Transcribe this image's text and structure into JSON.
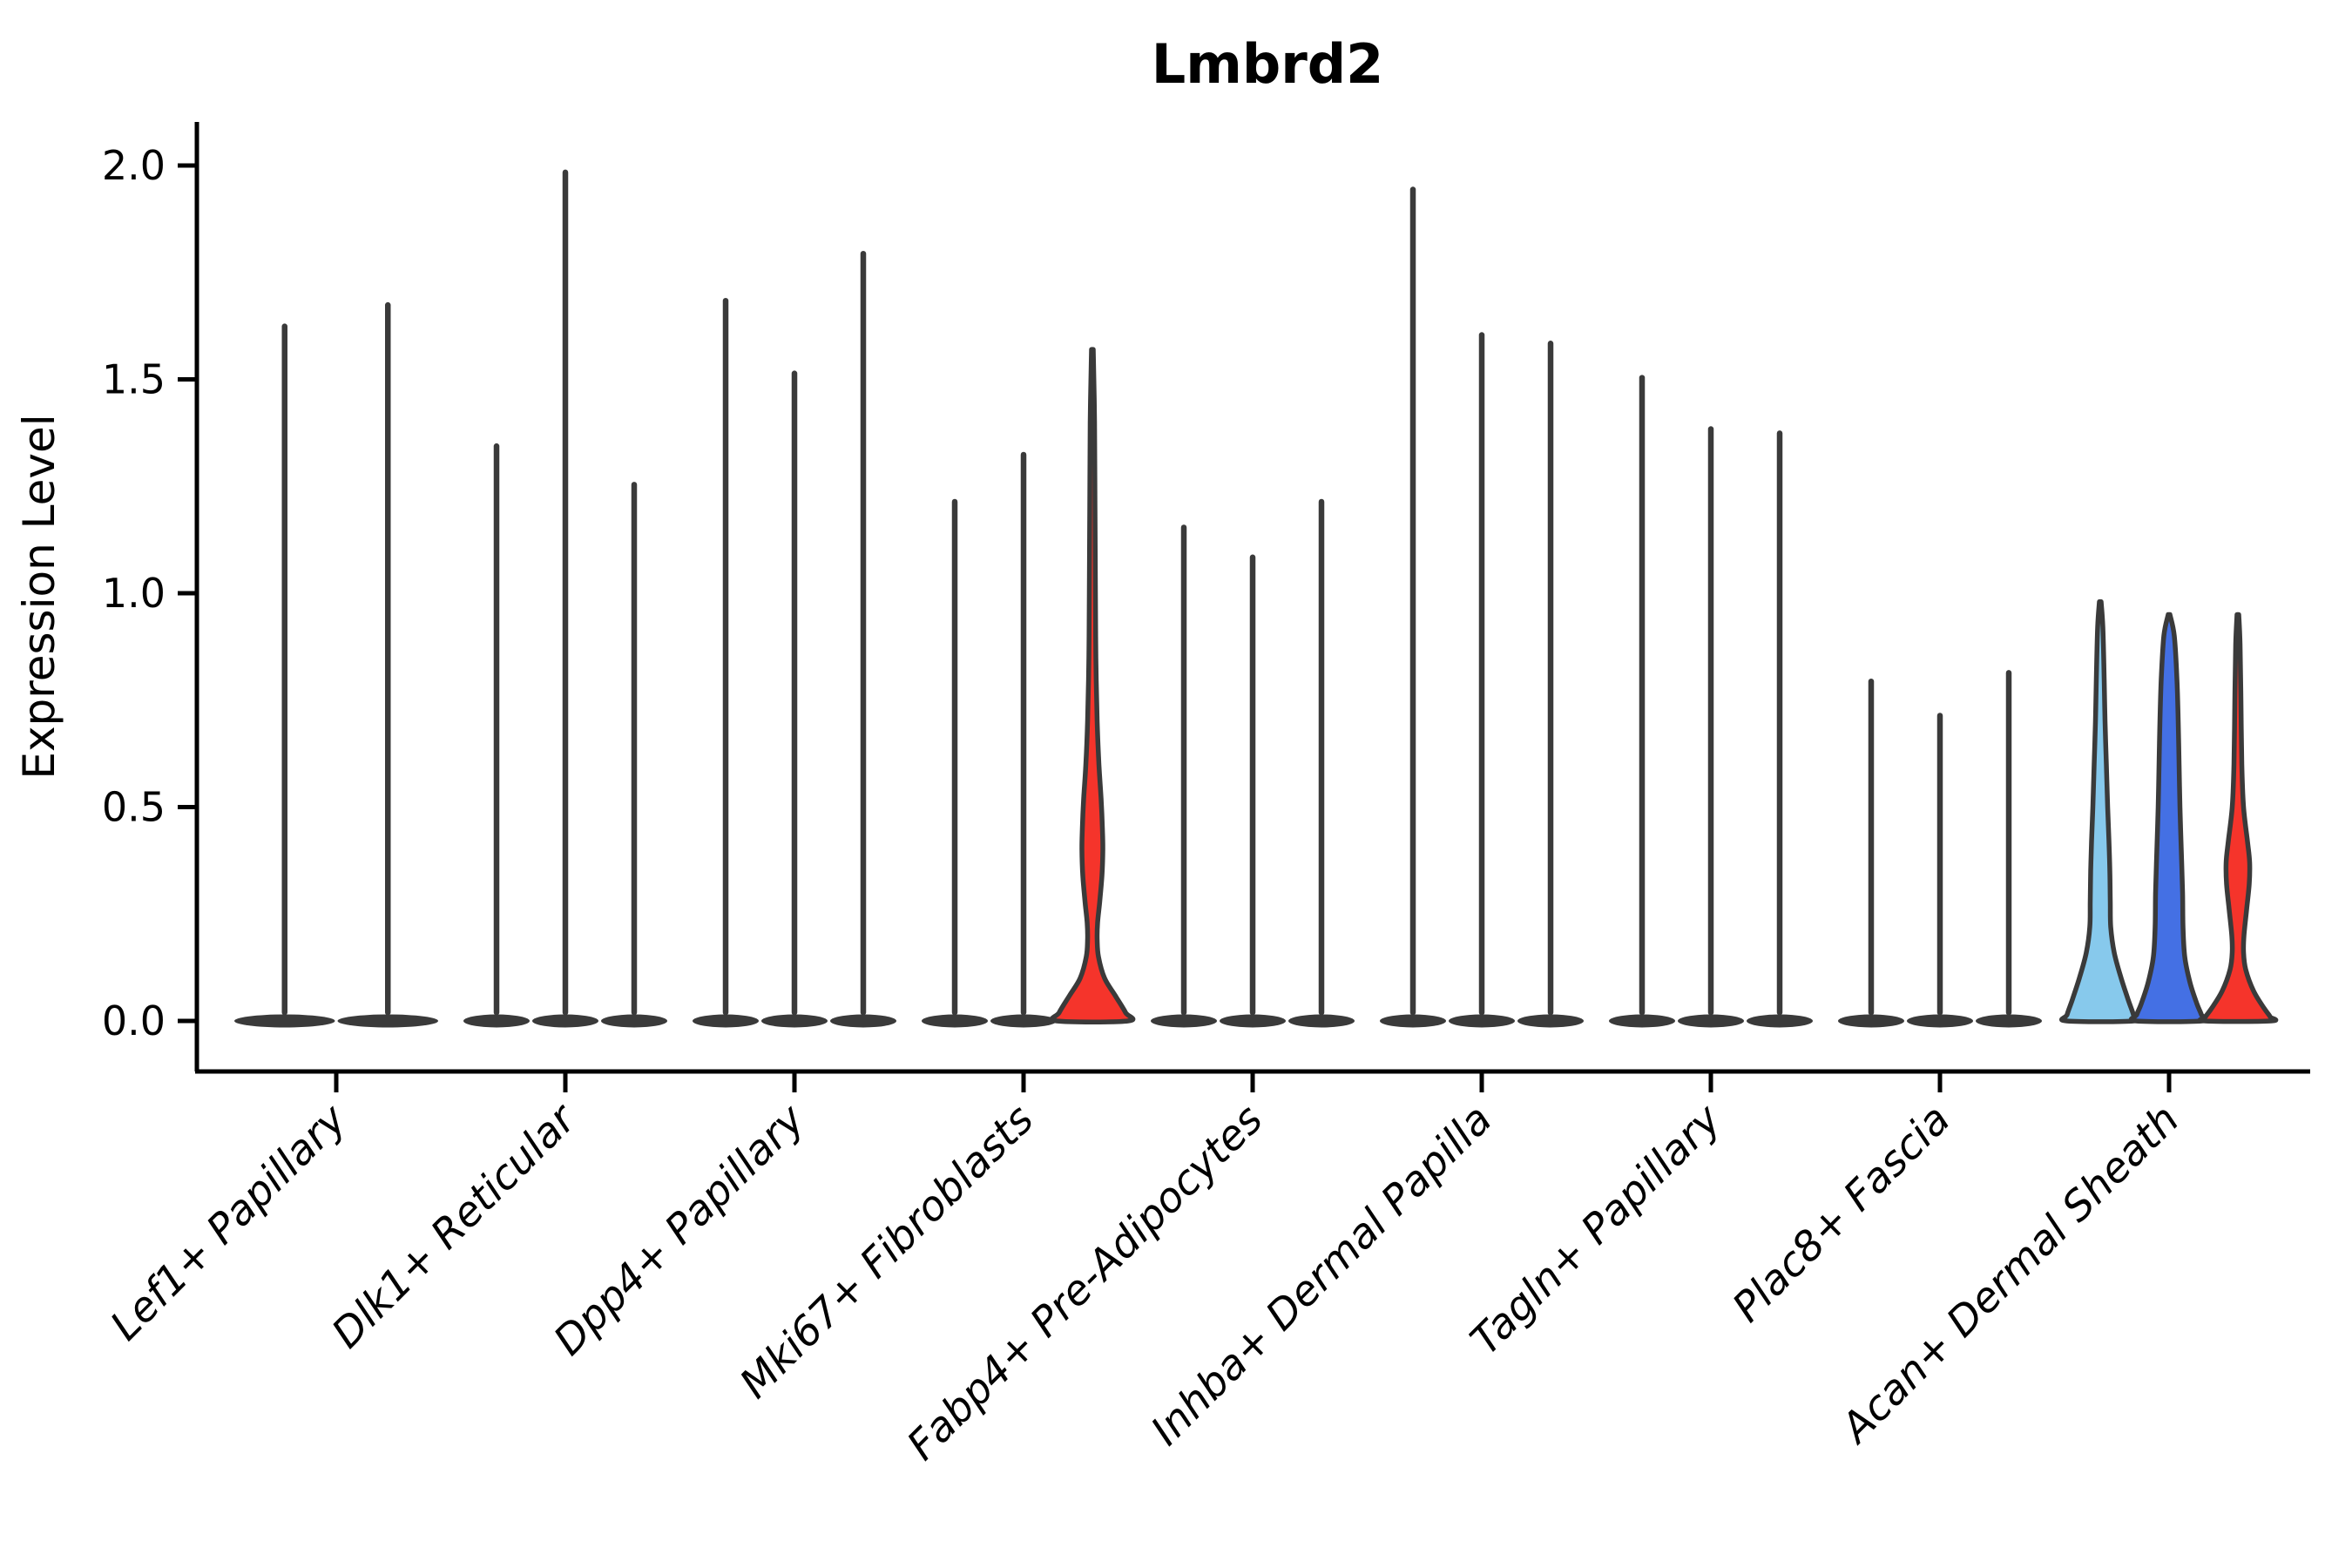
{
  "title": "Lmbrd2",
  "y_axis_label": "Expression Level",
  "palette": {
    "outline": "#3a3a3a",
    "spike": "#3a3a3a",
    "axis": "#000000",
    "red": "#f5342b",
    "skyblue": "#87c9ec",
    "royalblue": "#4470e4",
    "background": "#ffffff"
  },
  "chart_data": {
    "type": "violin",
    "title": "Lmbrd2",
    "xlabel": "",
    "ylabel": "Expression Level",
    "ylim": [
      0.0,
      2.0
    ],
    "yticks": [
      0.0,
      0.5,
      1.0,
      1.5,
      2.0
    ],
    "ytick_labels": [
      "0.0",
      "0.5",
      "1.0",
      "1.5",
      "2.0"
    ],
    "grid": false,
    "legend": "none",
    "categories": [
      "Lef1+ Papillary",
      "Dlk1+ Reticular",
      "Dpp4+ Papillary",
      "Mki67+ Fibroblasts",
      "Fabp4+ Pre-Adipocytes",
      "Inhba+ Dermal Papilla",
      "Tagln+ Papillary",
      "Plac8+ Fascia",
      "Acan+ Dermal Sheath"
    ],
    "groups": [
      {
        "label": "Lef1+ Papillary",
        "violins": [
          {
            "max": 1.63,
            "style": "spike",
            "fill": "white"
          },
          {
            "max": 1.68,
            "style": "spike",
            "fill": "white"
          }
        ]
      },
      {
        "label": "Dlk1+ Reticular",
        "violins": [
          {
            "max": 1.35,
            "style": "spike",
            "fill": "white"
          },
          {
            "max": 1.99,
            "style": "spike",
            "fill": "white"
          },
          {
            "max": 1.26,
            "style": "spike",
            "fill": "white"
          }
        ]
      },
      {
        "label": "Dpp4+ Papillary",
        "violins": [
          {
            "max": 1.69,
            "style": "spike",
            "fill": "white"
          },
          {
            "max": 1.52,
            "style": "spike",
            "fill": "white"
          },
          {
            "max": 1.8,
            "style": "spike",
            "fill": "white"
          }
        ]
      },
      {
        "label": "Mki67+ Fibroblasts",
        "violins": [
          {
            "max": 1.22,
            "style": "spike",
            "fill": "white"
          },
          {
            "max": 1.33,
            "style": "spike",
            "fill": "white"
          },
          {
            "max": 1.57,
            "style": "shaped",
            "fill": "red",
            "profile": [
              [
                1.57,
                1
              ],
              [
                1.4,
                2.5
              ],
              [
                1.2,
                3
              ],
              [
                1.0,
                3.5
              ],
              [
                0.85,
                4
              ],
              [
                0.7,
                5.5
              ],
              [
                0.6,
                7.5
              ],
              [
                0.52,
                10
              ],
              [
                0.45,
                11.5
              ],
              [
                0.4,
                12
              ],
              [
                0.34,
                11
              ],
              [
                0.28,
                8.5
              ],
              [
                0.23,
                6
              ],
              [
                0.19,
                5.5
              ],
              [
                0.15,
                7
              ],
              [
                0.1,
                14
              ],
              [
                0.06,
                26
              ],
              [
                0.02,
                38
              ],
              [
                0.0,
                41
              ]
            ]
          }
        ]
      },
      {
        "label": "Fabp4+ Pre-Adipocytes",
        "violins": [
          {
            "max": 1.16,
            "style": "spike",
            "fill": "white"
          },
          {
            "max": 1.09,
            "style": "spike",
            "fill": "white"
          },
          {
            "max": 1.22,
            "style": "spike",
            "fill": "white"
          }
        ]
      },
      {
        "label": "Inhba+ Dermal Papilla",
        "violins": [
          {
            "max": 1.95,
            "style": "spike",
            "fill": "white"
          },
          {
            "max": 1.61,
            "style": "spike",
            "fill": "white"
          },
          {
            "max": 1.59,
            "style": "spike",
            "fill": "white"
          }
        ]
      },
      {
        "label": "Tagln+ Papillary",
        "violins": [
          {
            "max": 1.51,
            "style": "spike",
            "fill": "white"
          },
          {
            "max": 1.39,
            "style": "spike",
            "fill": "white"
          },
          {
            "max": 1.38,
            "style": "spike",
            "fill": "white"
          }
        ]
      },
      {
        "label": "Plac8+ Fascia",
        "violins": [
          {
            "max": 0.8,
            "style": "spike",
            "fill": "white"
          },
          {
            "max": 0.72,
            "style": "spike",
            "fill": "white"
          },
          {
            "max": 0.82,
            "style": "spike",
            "fill": "white"
          }
        ]
      },
      {
        "label": "Acan+ Dermal Sheath",
        "violins": [
          {
            "max": 0.98,
            "style": "shaped",
            "fill": "skyblue",
            "profile": [
              [
                0.98,
                1
              ],
              [
                0.92,
                3
              ],
              [
                0.8,
                4.5
              ],
              [
                0.7,
                5.5
              ],
              [
                0.6,
                7
              ],
              [
                0.5,
                8.5
              ],
              [
                0.42,
                10
              ],
              [
                0.35,
                11
              ],
              [
                0.28,
                11.5
              ],
              [
                0.22,
                12
              ],
              [
                0.16,
                16
              ],
              [
                0.1,
                24
              ],
              [
                0.05,
                32
              ],
              [
                0.015,
                38
              ],
              [
                0.0,
                38.5
              ]
            ]
          },
          {
            "max": 0.95,
            "style": "shaped",
            "fill": "royalblue",
            "profile": [
              [
                0.95,
                1
              ],
              [
                0.9,
                6
              ],
              [
                0.8,
                9
              ],
              [
                0.7,
                10.5
              ],
              [
                0.6,
                11.5
              ],
              [
                0.5,
                12.5
              ],
              [
                0.4,
                14
              ],
              [
                0.3,
                15.5
              ],
              [
                0.22,
                16
              ],
              [
                0.15,
                18
              ],
              [
                0.09,
                24
              ],
              [
                0.04,
                32
              ],
              [
                0.015,
                37
              ],
              [
                0.0,
                38
              ]
            ]
          },
          {
            "max": 0.95,
            "style": "shaped",
            "fill": "red",
            "profile": [
              [
                0.95,
                1
              ],
              [
                0.88,
                2.5
              ],
              [
                0.75,
                3.5
              ],
              [
                0.6,
                4.5
              ],
              [
                0.5,
                6.5
              ],
              [
                0.42,
                11
              ],
              [
                0.37,
                13.5
              ],
              [
                0.32,
                13
              ],
              [
                0.26,
                10
              ],
              [
                0.2,
                7
              ],
              [
                0.16,
                6.5
              ],
              [
                0.12,
                9
              ],
              [
                0.07,
                18
              ],
              [
                0.03,
                30
              ],
              [
                0.01,
                37
              ],
              [
                0.0,
                38
              ]
            ]
          }
        ]
      }
    ]
  }
}
